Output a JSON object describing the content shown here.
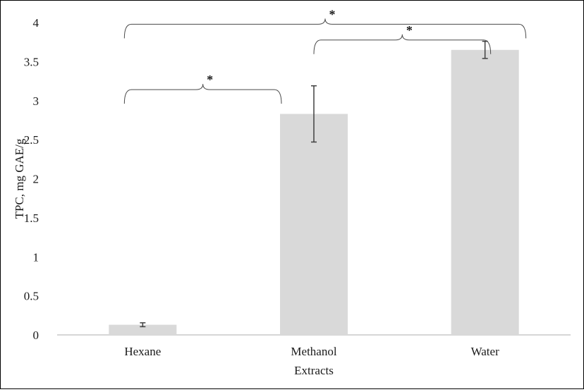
{
  "chart_data": {
    "type": "bar",
    "title": "",
    "xlabel": "Extracts",
    "ylabel": "TPC, mg GAE/g",
    "ylim": [
      0,
      4
    ],
    "yticks": [
      0,
      0.5,
      1,
      1.5,
      2,
      2.5,
      3,
      3.5,
      4
    ],
    "yticks_text": [
      "0",
      "0.5",
      "1",
      "1.5",
      "2",
      "2.5",
      "3",
      "3.5",
      "4"
    ],
    "categories": [
      "Hexane",
      "Methanol",
      "Water"
    ],
    "values": [
      0.13,
      2.83,
      3.65
    ],
    "errors": [
      0.025,
      0.36,
      0.11
    ],
    "bar_color": "#d9d9d9",
    "error_color": "#404040",
    "grid": false,
    "significance": [
      {
        "from": "Hexane",
        "to": "Methanol",
        "label": "*"
      },
      {
        "from": "Methanol",
        "to": "Water",
        "label": "*"
      },
      {
        "from": "Hexane",
        "to": "Water",
        "label": "*"
      }
    ]
  }
}
